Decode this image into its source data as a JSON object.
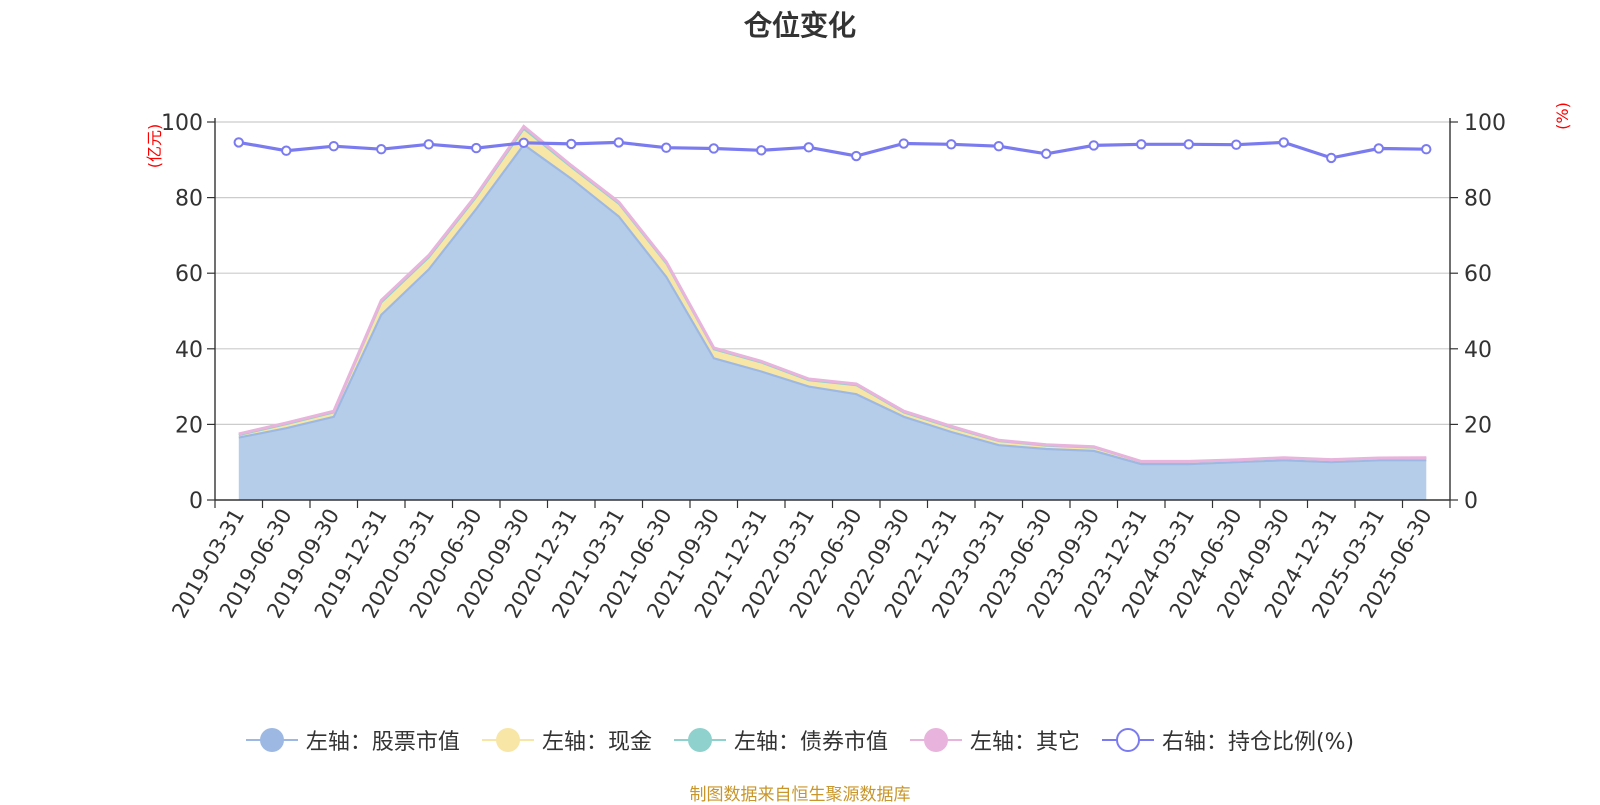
{
  "source_note": "制图数据来自恒生聚源数据库",
  "colors": {
    "stock": "#9db9e3",
    "stock_fill": "#b6cdea",
    "cash": "#f8e6a6",
    "bond": "#8fd1cd",
    "other": "#e8b3dc",
    "ratio": "#7b7bf0",
    "axis": "#333333",
    "grid": "#cccccc",
    "unit": "#ff0000",
    "source": "#c8962a"
  },
  "chart_data": {
    "type": "area",
    "title": "仓位变化",
    "left_axis_unit": "(亿元)",
    "right_axis_unit": "(%)",
    "ylim_left": [
      0,
      100
    ],
    "ylim_right": [
      0,
      100
    ],
    "yticks_left": [
      "0",
      "20",
      "40",
      "60",
      "80",
      "100"
    ],
    "yticks_right": [
      "0",
      "20",
      "40",
      "60",
      "80",
      "100"
    ],
    "grid": true,
    "legend_placement": "bottom-center",
    "categories": [
      "2019-03-31",
      "2019-06-30",
      "2019-09-30",
      "2019-12-31",
      "2020-03-31",
      "2020-06-30",
      "2020-09-30",
      "2020-12-31",
      "2021-03-31",
      "2021-06-30",
      "2021-09-30",
      "2021-12-31",
      "2022-03-31",
      "2022-06-30",
      "2022-09-30",
      "2022-12-31",
      "2023-03-31",
      "2023-06-30",
      "2023-09-30",
      "2023-12-31",
      "2024-03-31",
      "2024-06-30",
      "2024-09-30",
      "2024-12-31",
      "2025-03-31",
      "2025-06-30"
    ],
    "series": [
      {
        "name": "左轴：股票市值",
        "axis": "left",
        "stack": true,
        "values": [
          16.5,
          19,
          22,
          49,
          61,
          77,
          94,
          85,
          75,
          59,
          37.5,
          34,
          30,
          28,
          22,
          18,
          14.5,
          13.5,
          13,
          9.5,
          9.5,
          10,
          10.5,
          10,
          10.5,
          10.5
        ]
      },
      {
        "name": "左轴：现金",
        "axis": "left",
        "stack": true,
        "values": [
          0.7,
          1.1,
          1.2,
          3.3,
          3.2,
          3.2,
          4.2,
          3.1,
          3.4,
          3.6,
          2.4,
          2.4,
          1.7,
          2.4,
          1.2,
          1.2,
          1.1,
          0.9,
          0.9,
          0.6,
          0.6,
          0.5,
          0.6,
          0.6,
          0.5,
          0.6
        ]
      },
      {
        "name": "左轴：债券市值",
        "axis": "left",
        "stack": true,
        "values": [
          0,
          0,
          0,
          0,
          0,
          0,
          0,
          0,
          0,
          0,
          0,
          0,
          0,
          0,
          0,
          0,
          0,
          0,
          0,
          0,
          0,
          0,
          0,
          0,
          0,
          0
        ]
      },
      {
        "name": "左轴：其它",
        "axis": "left",
        "stack": true,
        "values": [
          0.3,
          0.3,
          0.3,
          0.5,
          0.5,
          0.5,
          0.6,
          0.4,
          0.4,
          0.4,
          0.3,
          0.3,
          0.3,
          0.3,
          0.3,
          0.3,
          0.2,
          0.2,
          0.2,
          0.1,
          0.1,
          0.1,
          0.1,
          0.1,
          0.1,
          0.1
        ]
      },
      {
        "name": "右轴：持仓比例(%)",
        "axis": "right",
        "type": "line",
        "values": [
          94.6,
          92.4,
          93.6,
          92.8,
          94.1,
          93.1,
          94.5,
          94.2,
          94.6,
          93.2,
          93,
          92.5,
          93.3,
          91,
          94.3,
          94.1,
          93.6,
          91.6,
          93.8,
          94.1,
          94.1,
          94,
          94.6,
          90.5,
          93,
          92.8
        ]
      }
    ]
  }
}
